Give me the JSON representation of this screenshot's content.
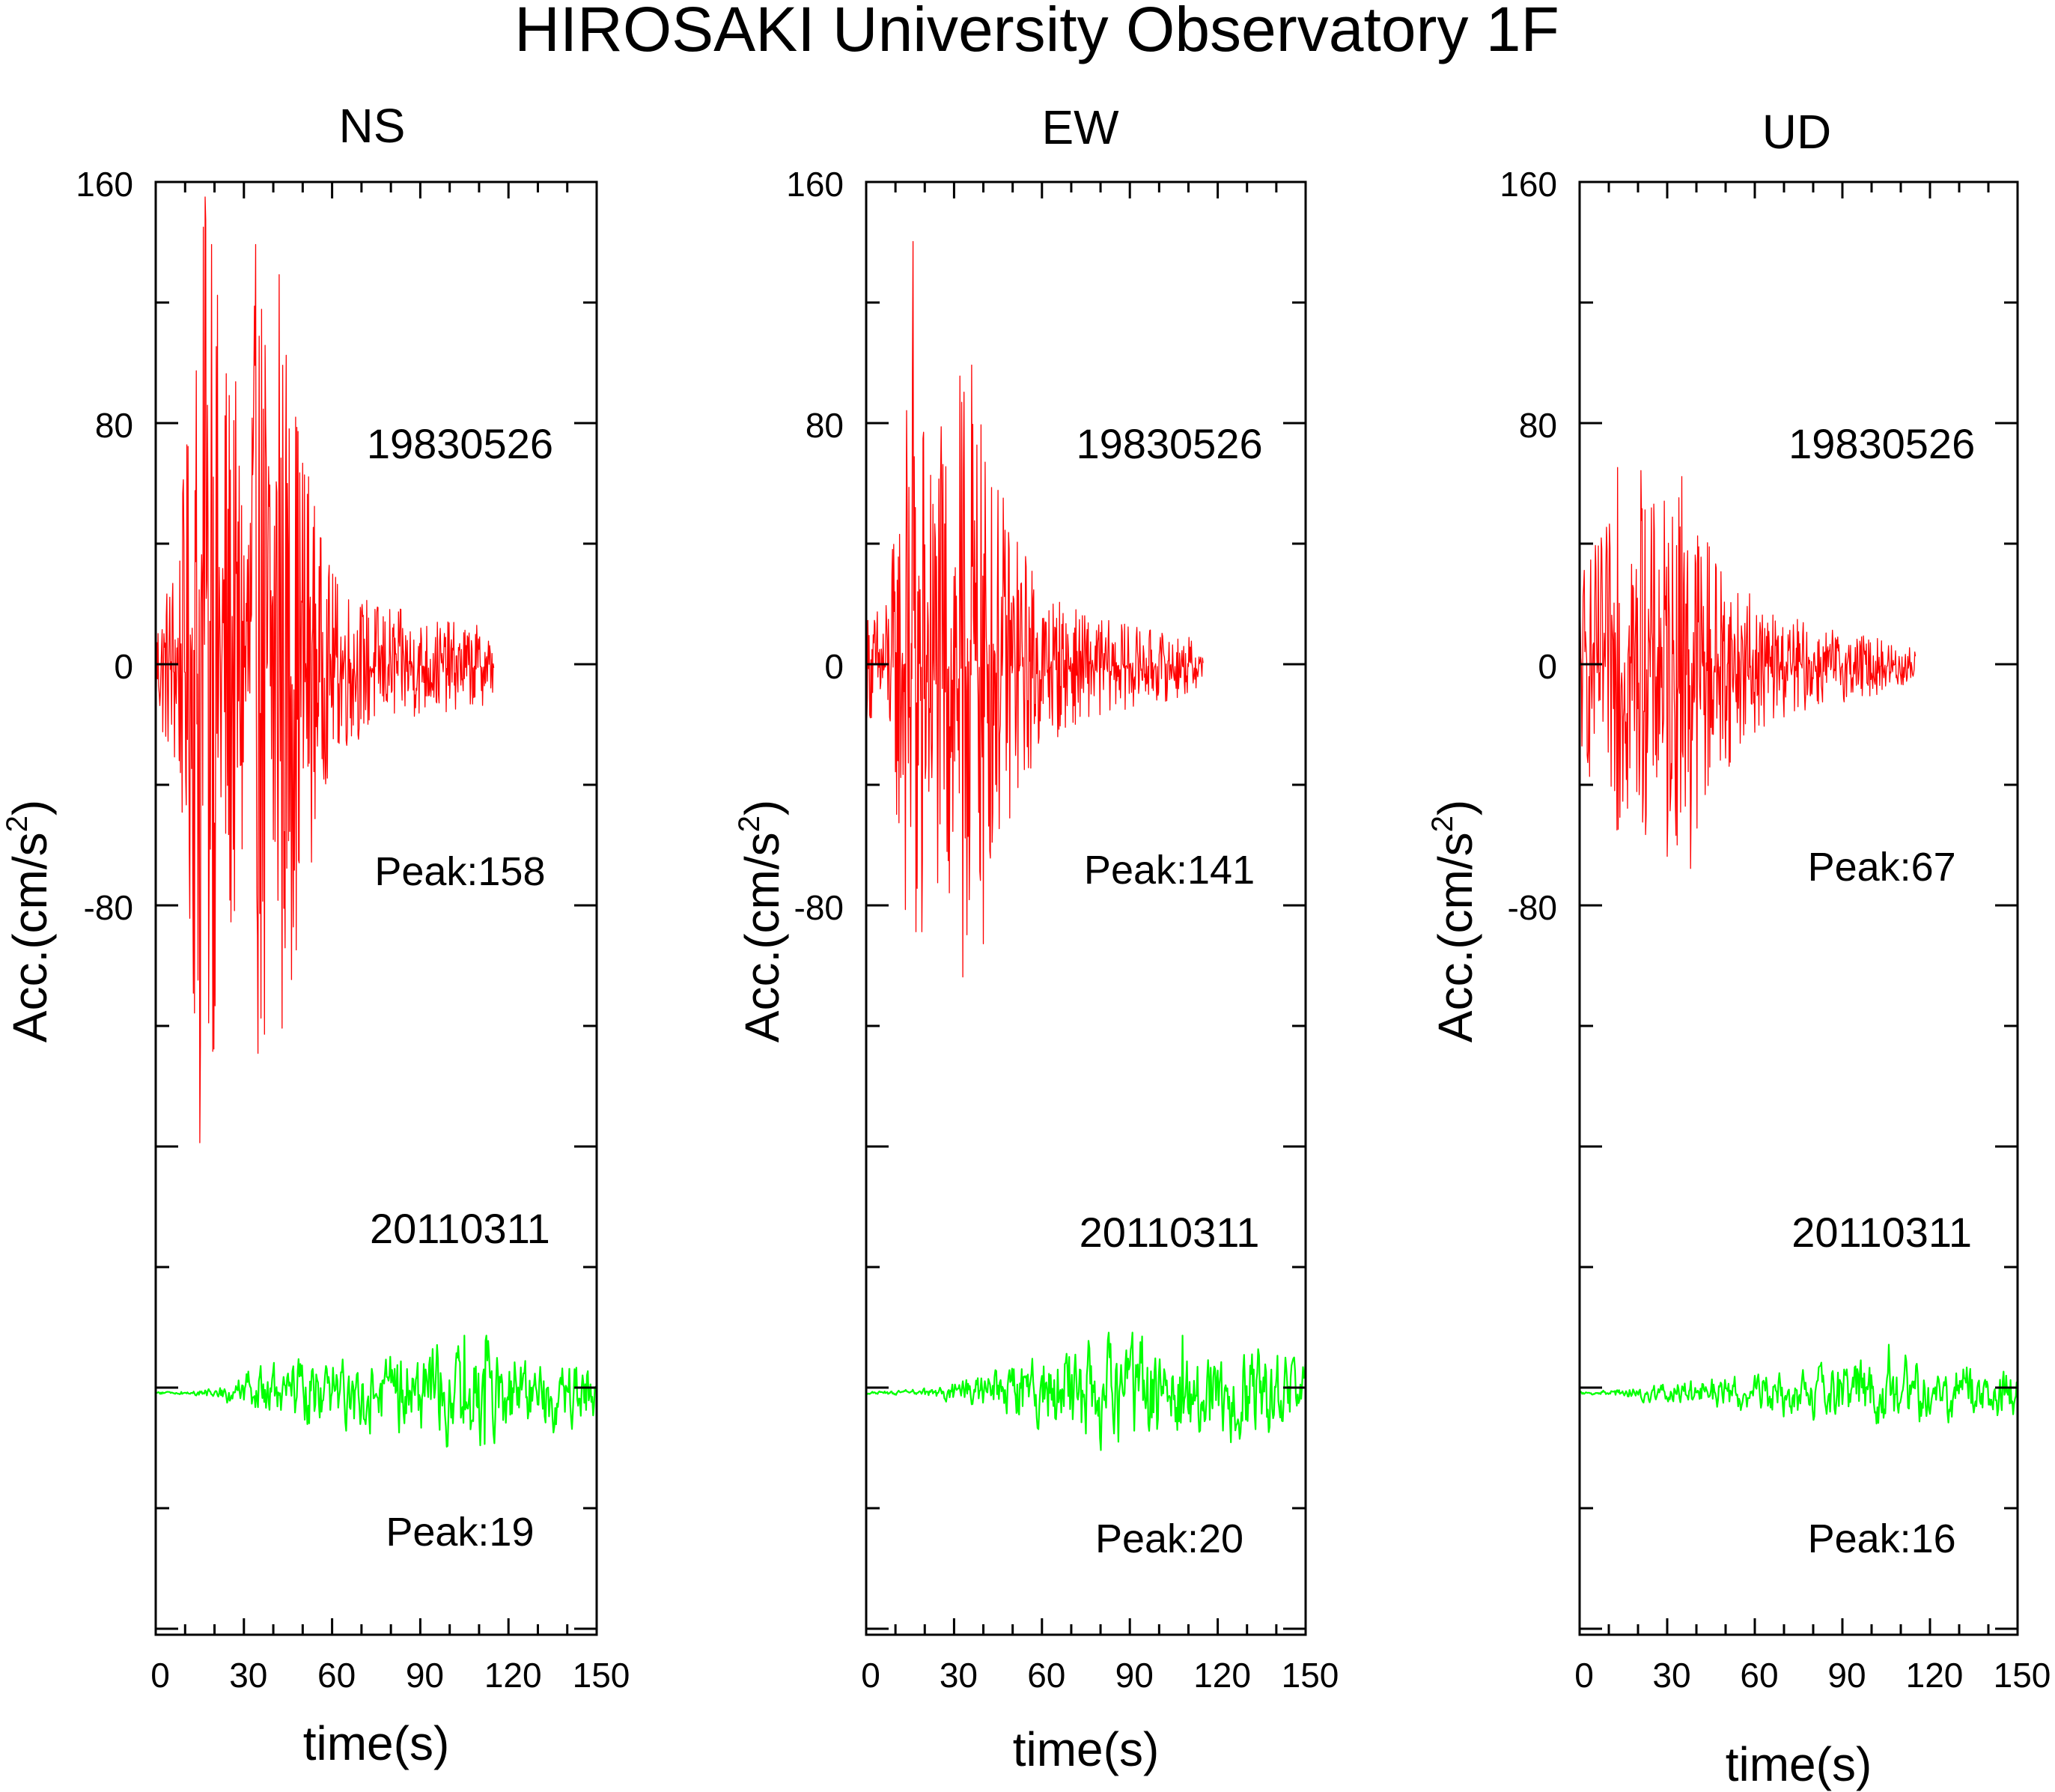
{
  "title": "HIROSAKI University Observatory 1F",
  "chart_data": [
    {
      "type": "line",
      "panel_title": "NS",
      "xlabel": "time(s)",
      "ylabel_base": "Acc.(cm/s",
      "ylabel_sup": "2",
      "ylabel_close": ")",
      "xlim": [
        0,
        150
      ],
      "x_ticks": [
        0,
        30,
        60,
        90,
        120,
        150
      ],
      "y_tick_labels": [
        {
          "value": 160,
          "label": "160"
        },
        {
          "value": 80,
          "label": "80"
        },
        {
          "value": 0,
          "label": "0"
        },
        {
          "value": -80,
          "label": "-80"
        }
      ],
      "series": [
        {
          "name": "19830526",
          "peak_label": "Peak:158",
          "color": "#ff0000",
          "duration_s": 115,
          "peak": 158,
          "envelope": [
            [
              0,
              20
            ],
            [
              4,
              30
            ],
            [
              8,
              48
            ],
            [
              11,
              80
            ],
            [
              13,
              122
            ],
            [
              15,
              150
            ],
            [
              17,
              158
            ],
            [
              20,
              135
            ],
            [
              23,
              118
            ],
            [
              27,
              95
            ],
            [
              30,
              88
            ],
            [
              33,
              115
            ],
            [
              36,
              140
            ],
            [
              40,
              132
            ],
            [
              44,
              118
            ],
            [
              48,
              95
            ],
            [
              52,
              72
            ],
            [
              56,
              45
            ],
            [
              60,
              32
            ],
            [
              70,
              24
            ],
            [
              80,
              20
            ],
            [
              90,
              17
            ],
            [
              100,
              15
            ],
            [
              110,
              14
            ],
            [
              115,
              10
            ]
          ],
          "spikes": [
            [
              15,
              -158
            ],
            [
              17,
              148
            ],
            [
              19,
              140
            ],
            [
              34,
              140
            ],
            [
              37,
              -122
            ],
            [
              42,
              130
            ],
            [
              43,
              -120
            ]
          ]
        },
        {
          "name": "20110311",
          "peak_label": "Peak:19",
          "color": "#00ff00",
          "duration_s": 150,
          "peak": 19,
          "envelope": [
            [
              0,
              0.5
            ],
            [
              10,
              0.8
            ],
            [
              20,
              1.5
            ],
            [
              25,
              4
            ],
            [
              30,
              7
            ],
            [
              40,
              10
            ],
            [
              50,
              11
            ],
            [
              60,
              12
            ],
            [
              70,
              13
            ],
            [
              80,
              14
            ],
            [
              90,
              15
            ],
            [
              100,
              17
            ],
            [
              110,
              19
            ],
            [
              120,
              14
            ],
            [
              130,
              13
            ],
            [
              140,
              12
            ],
            [
              150,
              11
            ]
          ],
          "spikes": [
            [
              105,
              19
            ],
            [
              112,
              -17
            ]
          ]
        }
      ]
    },
    {
      "type": "line",
      "panel_title": "EW",
      "xlabel": "time(s)",
      "ylabel_base": "Acc.(cm/s",
      "ylabel_sup": "2",
      "ylabel_close": ")",
      "xlim": [
        0,
        150
      ],
      "x_ticks": [
        0,
        30,
        60,
        90,
        120,
        150
      ],
      "y_tick_labels": [
        {
          "value": 160,
          "label": "160"
        },
        {
          "value": 80,
          "label": "80"
        },
        {
          "value": 0,
          "label": "0"
        },
        {
          "value": -80,
          "label": "-80"
        }
      ],
      "series": [
        {
          "name": "19830526",
          "peak_label": "Peak:141",
          "color": "#ff0000",
          "duration_s": 115,
          "peak": 141,
          "envelope": [
            [
              0,
              18
            ],
            [
              5,
              22
            ],
            [
              8,
              32
            ],
            [
              11,
              60
            ],
            [
              14,
              95
            ],
            [
              16,
              110
            ],
            [
              18,
              100
            ],
            [
              21,
              85
            ],
            [
              25,
              78
            ],
            [
              30,
              95
            ],
            [
              34,
              100
            ],
            [
              37,
              90
            ],
            [
              41,
              75
            ],
            [
              45,
              62
            ],
            [
              50,
              50
            ],
            [
              54,
              40
            ],
            [
              60,
              28
            ],
            [
              70,
              20
            ],
            [
              80,
              16
            ],
            [
              90,
              14
            ],
            [
              100,
              12
            ],
            [
              110,
              10
            ],
            [
              115,
              7
            ]
          ],
          "spikes": [
            [
              16,
              141
            ],
            [
              17,
              -88
            ],
            [
              19,
              -88
            ],
            [
              33,
              -103
            ],
            [
              36,
              100
            ],
            [
              40,
              -92
            ]
          ]
        },
        {
          "name": "20110311",
          "peak_label": "Peak:20",
          "color": "#00ff00",
          "duration_s": 150,
          "peak": 20,
          "envelope": [
            [
              0,
              0.5
            ],
            [
              10,
              0.8
            ],
            [
              20,
              1.5
            ],
            [
              30,
              4
            ],
            [
              40,
              7
            ],
            [
              50,
              10
            ],
            [
              60,
              13
            ],
            [
              70,
              17
            ],
            [
              80,
              19
            ],
            [
              90,
              20
            ],
            [
              100,
              18
            ],
            [
              110,
              17
            ],
            [
              120,
              16
            ],
            [
              130,
              17
            ],
            [
              140,
              14
            ],
            [
              150,
              12
            ]
          ],
          "spikes": [
            [
              80,
              -19
            ],
            [
              91,
              20
            ],
            [
              108,
              19
            ]
          ]
        }
      ]
    },
    {
      "type": "line",
      "panel_title": "UD",
      "xlabel": "time(s)",
      "ylabel_base": "Acc.(cm/s",
      "ylabel_sup": "2",
      "ylabel_close": ")",
      "xlim": [
        0,
        150
      ],
      "x_ticks": [
        0,
        30,
        60,
        90,
        120,
        150
      ],
      "y_tick_labels": [
        {
          "value": 160,
          "label": "160"
        },
        {
          "value": 80,
          "label": "80"
        },
        {
          "value": 0,
          "label": "0"
        },
        {
          "value": -80,
          "label": "-80"
        }
      ],
      "series": [
        {
          "name": "19830526",
          "peak_label": "Peak:67",
          "color": "#ff0000",
          "duration_s": 115,
          "peak": 67,
          "envelope": [
            [
              0,
              35
            ],
            [
              5,
              40
            ],
            [
              10,
              48
            ],
            [
              13,
              55
            ],
            [
              16,
              58
            ],
            [
              20,
              57
            ],
            [
              25,
              55
            ],
            [
              30,
              58
            ],
            [
              35,
              60
            ],
            [
              40,
              55
            ],
            [
              45,
              45
            ],
            [
              50,
              35
            ],
            [
              55,
              28
            ],
            [
              60,
              22
            ],
            [
              70,
              17
            ],
            [
              80,
              14
            ],
            [
              90,
              12
            ],
            [
              100,
              10
            ],
            [
              110,
              8
            ],
            [
              115,
              6
            ]
          ],
          "spikes": [
            [
              13,
              66
            ],
            [
              21,
              65
            ],
            [
              35,
              63
            ],
            [
              38,
              -67
            ],
            [
              30,
              -63
            ]
          ]
        },
        {
          "name": "20110311",
          "peak_label": "Peak:16",
          "color": "#00ff00",
          "duration_s": 150,
          "peak": 16,
          "envelope": [
            [
              0,
              0.5
            ],
            [
              10,
              1
            ],
            [
              20,
              2.5
            ],
            [
              30,
              4
            ],
            [
              40,
              5
            ],
            [
              50,
              6
            ],
            [
              60,
              7
            ],
            [
              70,
              8
            ],
            [
              80,
              9
            ],
            [
              90,
              10
            ],
            [
              100,
              11
            ],
            [
              110,
              13
            ],
            [
              120,
              11
            ],
            [
              130,
              10
            ],
            [
              140,
              9
            ],
            [
              150,
              8
            ]
          ],
          "spikes": [
            [
              106,
              16
            ],
            [
              80,
              -9
            ]
          ]
        }
      ]
    }
  ]
}
